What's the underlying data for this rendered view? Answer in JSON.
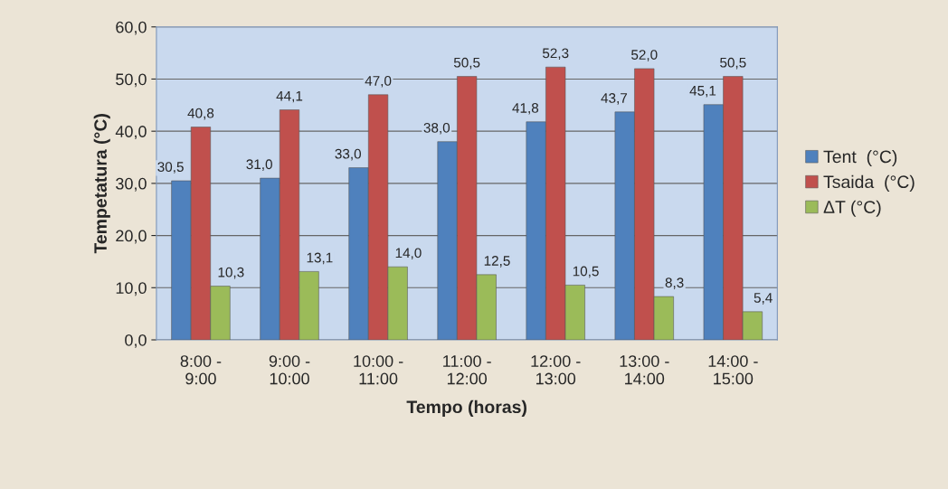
{
  "chart_data": {
    "type": "bar",
    "xlabel": "Tempo (horas)",
    "ylabel": "Tempetatura (°C)",
    "categories": [
      "8:00 -\n9:00",
      "9:00 -\n10:00",
      "10:00 -\n11:00",
      "11:00 -\n12:00",
      "12:00 -\n13:00",
      "13:00 -\n14:00",
      "14:00 -\n15:00"
    ],
    "series": [
      {
        "name": "Tent  (°C)",
        "color": "#4f81bd",
        "values": [
          30.5,
          31.0,
          33.0,
          38.0,
          41.8,
          43.7,
          45.1
        ],
        "value_labels": [
          "30,5",
          "31,0",
          "33,0",
          "38,0",
          "41,8",
          "43,7",
          "45,1"
        ]
      },
      {
        "name": "Tsaida  (°C)",
        "color": "#c0504d",
        "values": [
          40.8,
          44.1,
          47.0,
          50.5,
          52.3,
          52.0,
          50.5
        ],
        "value_labels": [
          "40,8",
          "44,1",
          "47,0",
          "50,5",
          "52,3",
          "52,0",
          "50,5"
        ]
      },
      {
        "name": "ΔT (°C)",
        "color": "#9bbb59",
        "values": [
          10.3,
          13.1,
          14.0,
          12.5,
          10.5,
          8.3,
          5.4
        ],
        "value_labels": [
          "10,3",
          "13,1",
          "14,0",
          "12,5",
          "10,5",
          "8,3",
          "5,4"
        ]
      }
    ],
    "ylim": [
      0,
      60
    ],
    "yticks": [
      {
        "value": 0,
        "label": "0,0"
      },
      {
        "value": 10,
        "label": "10,0"
      },
      {
        "value": 20,
        "label": "20,0"
      },
      {
        "value": 30,
        "label": "30,0"
      },
      {
        "value": 40,
        "label": "40,0"
      },
      {
        "value": 50,
        "label": "50,0"
      },
      {
        "value": 60,
        "label": "60,0"
      }
    ],
    "grid": "y",
    "legend": "right"
  }
}
